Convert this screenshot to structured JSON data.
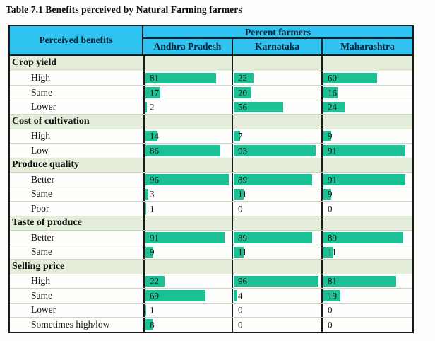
{
  "title": "Table 7.1 Benefits perceived by Natural Farming farmers",
  "table": {
    "col1_header": "Perceived benefits",
    "group_header": "Percent farmers",
    "columns": [
      "Andhra Pradesh",
      "Karnataka",
      "Maharashtra"
    ]
  },
  "colors": {
    "header_bg": "#2fc3f2",
    "header_text": "#07202f",
    "bar_fill": "#19c194",
    "section_row_bg": "#e4ecda",
    "grid_line": "#cdd5c6",
    "table_border": "#1a1a1a"
  },
  "chart_data": {
    "type": "table",
    "title": "Table 7.1 Benefits perceived by Natural Farming farmers",
    "columns": [
      "Perceived benefits",
      "Andhra Pradesh",
      "Karnataka",
      "Maharashtra"
    ],
    "value_unit": "percent of farmers",
    "bar_range": [
      0,
      100
    ],
    "bar_style": "in-cell horizontal data bars",
    "sections": [
      {
        "name": "Crop yield",
        "rows": [
          {
            "label": "High",
            "values": [
              81,
              22,
              60
            ]
          },
          {
            "label": "Same",
            "values": [
              17,
              20,
              16
            ]
          },
          {
            "label": "Lower",
            "values": [
              2,
              56,
              24
            ]
          }
        ]
      },
      {
        "name": "Cost of cultivation",
        "rows": [
          {
            "label": "High",
            "values": [
              14,
              7,
              9
            ]
          },
          {
            "label": "Low",
            "values": [
              86,
              93,
              91
            ]
          }
        ]
      },
      {
        "name": "Produce quality",
        "rows": [
          {
            "label": "Better",
            "values": [
              96,
              89,
              91
            ]
          },
          {
            "label": "Same",
            "values": [
              3,
              11,
              9
            ]
          },
          {
            "label": "Poor",
            "values": [
              1,
              0,
              0
            ]
          }
        ]
      },
      {
        "name": "Taste of produce",
        "rows": [
          {
            "label": "Better",
            "values": [
              91,
              89,
              89
            ]
          },
          {
            "label": "Same",
            "values": [
              9,
              11,
              11
            ]
          }
        ]
      },
      {
        "name": "Selling price",
        "rows": [
          {
            "label": "High",
            "values": [
              22,
              96,
              81
            ]
          },
          {
            "label": "Same",
            "values": [
              69,
              4,
              19
            ]
          },
          {
            "label": "Lower",
            "values": [
              1,
              0,
              0
            ]
          },
          {
            "label": "Sometimes high/low",
            "values": [
              8,
              0,
              0
            ]
          }
        ]
      }
    ]
  }
}
